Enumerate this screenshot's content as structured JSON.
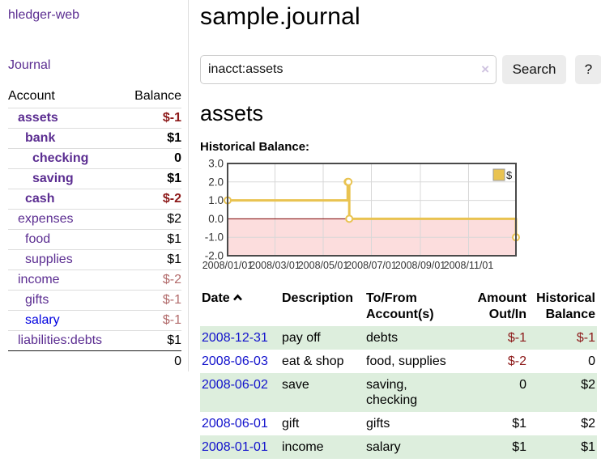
{
  "sidebar": {
    "app_title": "hledger-web",
    "nav": {
      "journal": "Journal"
    },
    "accounts": {
      "col_account": "Account",
      "col_balance": "Balance",
      "rows": [
        {
          "name": "assets",
          "balance": "$-1",
          "indent": 0,
          "bold": true,
          "balance_style": "neg",
          "link_style": "purple"
        },
        {
          "name": "bank",
          "balance": "$1",
          "indent": 1,
          "bold": true,
          "balance_style": "",
          "link_style": "purple"
        },
        {
          "name": "checking",
          "balance": "0",
          "indent": 2,
          "bold": true,
          "balance_style": "",
          "link_style": "purple"
        },
        {
          "name": "saving",
          "balance": "$1",
          "indent": 2,
          "bold": true,
          "balance_style": "",
          "link_style": "purple"
        },
        {
          "name": "cash",
          "balance": "$-2",
          "indent": 1,
          "bold": true,
          "balance_style": "neg",
          "link_style": "purple"
        },
        {
          "name": "expenses",
          "balance": "$2",
          "indent": 0,
          "bold": false,
          "balance_style": "",
          "link_style": "purple"
        },
        {
          "name": "food",
          "balance": "$1",
          "indent": 1,
          "bold": false,
          "balance_style": "",
          "link_style": "purple"
        },
        {
          "name": "supplies",
          "balance": "$1",
          "indent": 1,
          "bold": false,
          "balance_style": "",
          "link_style": "purple"
        },
        {
          "name": "income",
          "balance": "$-2",
          "indent": 0,
          "bold": false,
          "balance_style": "neg-soft",
          "link_style": "purple"
        },
        {
          "name": "gifts",
          "balance": "$-1",
          "indent": 1,
          "bold": false,
          "balance_style": "neg-soft",
          "link_style": "purple"
        },
        {
          "name": "salary",
          "balance": "$-1",
          "indent": 1,
          "bold": false,
          "balance_style": "neg-soft",
          "link_style": "blue"
        },
        {
          "name": "liabilities:debts",
          "balance": "$1",
          "indent": 0,
          "bold": false,
          "balance_style": "",
          "link_style": "purple"
        }
      ],
      "total": "0"
    }
  },
  "main": {
    "title": "sample.journal",
    "search": {
      "value": "inacct:assets",
      "clear_label": "×",
      "button": "Search",
      "help": "?"
    },
    "account_heading": "assets",
    "chart_heading": "Historical Balance:"
  },
  "chart_data": {
    "type": "line",
    "step": true,
    "title": "Historical Balance:",
    "legend": [
      {
        "label": "$",
        "color": "#e9c351"
      }
    ],
    "legend_position": "top-right",
    "grid": true,
    "x_start": "2008-01-01",
    "x_end": "2008-12-31",
    "points": [
      {
        "date": "2008-01-01",
        "value": 1
      },
      {
        "date": "2008-06-01",
        "value": 2
      },
      {
        "date": "2008-06-02",
        "value": 2
      },
      {
        "date": "2008-06-03",
        "value": 0
      },
      {
        "date": "2008-12-31",
        "value": -1
      }
    ],
    "ylim": [
      -2,
      3
    ],
    "yticks": [
      {
        "v": 3,
        "label": "3.0"
      },
      {
        "v": 2,
        "label": "2.0"
      },
      {
        "v": 1,
        "label": "1.0"
      },
      {
        "v": 0,
        "label": "0.0"
      },
      {
        "v": -1,
        "label": "-1.0"
      },
      {
        "v": -2,
        "label": "-2.0"
      }
    ],
    "xticks": [
      {
        "date": "2008-01-01",
        "label": "2008/01/01"
      },
      {
        "date": "2008-03-01",
        "label": "2008/03/01"
      },
      {
        "date": "2008-05-01",
        "label": "2008/05/01"
      },
      {
        "date": "2008-07-01",
        "label": "2008/07/01"
      },
      {
        "date": "2008-09-01",
        "label": "2008/09/01"
      },
      {
        "date": "2008-11-01",
        "label": "2008/11/01"
      }
    ],
    "colors": {
      "line": "#e9c351",
      "marker_fill": "#ffffff",
      "negative_region": "#fcdddd",
      "zero_line": "#7d0000",
      "border": "#4a4a4a",
      "gridline": "#d8d8d8"
    }
  },
  "transactions": {
    "headers": {
      "date": "Date",
      "sort_icon": "chevron-up",
      "description": "Description",
      "accounts": "To/From Account(s)",
      "amount": "Amount Out/In",
      "balance": "Historical Balance"
    },
    "rows": [
      {
        "date": "2008-12-31",
        "description": "pay off",
        "accounts": "debts",
        "amount": "$-1",
        "amount_negative": true,
        "balance": "$-1",
        "balance_negative": true
      },
      {
        "date": "2008-06-03",
        "description": "eat & shop",
        "accounts": "food, supplies",
        "amount": "$-2",
        "amount_negative": true,
        "balance": "0",
        "balance_negative": false
      },
      {
        "date": "2008-06-02",
        "description": "save",
        "accounts": "saving, checking",
        "amount": "0",
        "amount_negative": false,
        "balance": "$2",
        "balance_negative": false
      },
      {
        "date": "2008-06-01",
        "description": "gift",
        "accounts": "gifts",
        "amount": "$1",
        "amount_negative": false,
        "balance": "$2",
        "balance_negative": false
      },
      {
        "date": "2008-01-01",
        "description": "income",
        "accounts": "salary",
        "amount": "$1",
        "amount_negative": false,
        "balance": "$1",
        "balance_negative": false
      }
    ]
  }
}
